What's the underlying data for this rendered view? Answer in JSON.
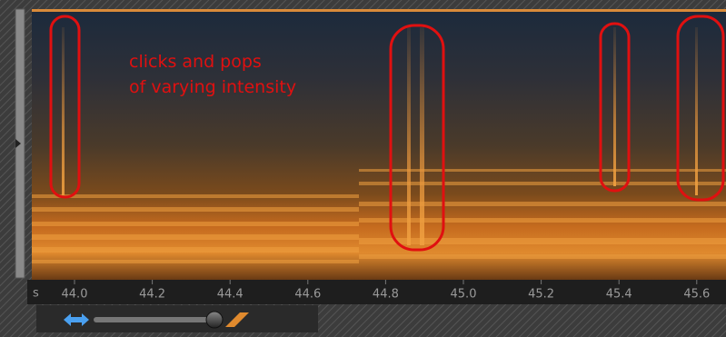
{
  "annotation": {
    "lines": [
      "clicks and pops",
      "of varying intensity"
    ]
  },
  "time_axis": {
    "unit": "s",
    "ticks": [
      "44.0",
      "44.2",
      "44.4",
      "44.6",
      "44.8",
      "45.0",
      "45.2",
      "45.4",
      "45.6"
    ]
  }
}
